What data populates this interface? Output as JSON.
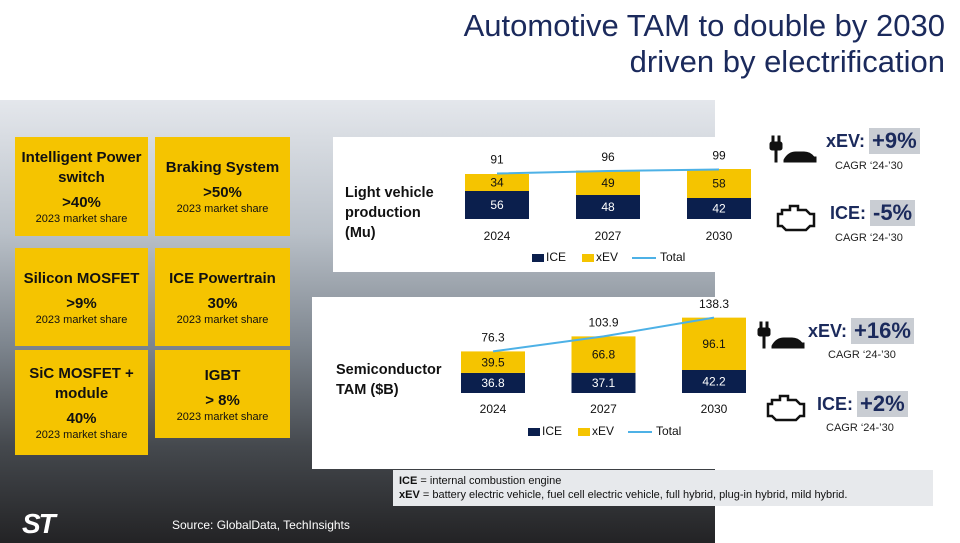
{
  "title_lines": [
    "Automotive TAM to double by 2030",
    "driven by electrification"
  ],
  "segments": [
    {
      "name": "Intelligent Power switch",
      "share": ">40%",
      "note": "2023 market share"
    },
    {
      "name": "Braking System",
      "share": ">50%",
      "note": "2023 market share"
    },
    {
      "name": "Silicon MOSFET",
      "share": ">9%",
      "note": "2023 market share"
    },
    {
      "name": "ICE Powertrain",
      "share": "30%",
      "note": "2023 market share"
    },
    {
      "name": "SiC MOSFET + module",
      "share": "40%",
      "note": "2023 market share"
    },
    {
      "name": "IGBT",
      "share": "> 8%",
      "note": "2023 market share"
    }
  ],
  "chart_data": [
    {
      "type": "bar",
      "stacked": true,
      "title": "Light vehicle production (Mu)",
      "categories": [
        "2024",
        "2027",
        "2030"
      ],
      "series": [
        {
          "name": "ICE",
          "color": "#0b1f4d",
          "values": [
            56,
            48,
            42
          ]
        },
        {
          "name": "xEV",
          "color": "#f5c400",
          "values": [
            34,
            49,
            58
          ]
        },
        {
          "name": "Total",
          "type": "line",
          "color": "#4db1e6",
          "values": [
            91,
            96,
            99
          ]
        }
      ]
    },
    {
      "type": "bar",
      "stacked": true,
      "title": "Semiconductor TAM ($B)",
      "categories": [
        "2024",
        "2027",
        "2030"
      ],
      "series": [
        {
          "name": "ICE",
          "color": "#0b1f4d",
          "values": [
            36.8,
            37.1,
            42.2
          ]
        },
        {
          "name": "xEV",
          "color": "#f5c400",
          "values": [
            39.5,
            66.8,
            96.1
          ]
        },
        {
          "name": "Total",
          "type": "line",
          "color": "#4db1e6",
          "values": [
            76.3,
            103.9,
            138.3
          ]
        }
      ]
    }
  ],
  "cagr": [
    {
      "segment": "xEV:",
      "value": "+9%",
      "period": "CAGR ‘24-’30"
    },
    {
      "segment": "ICE:",
      "value": "-5%",
      "period": "CAGR ‘24-’30"
    },
    {
      "segment": "xEV:",
      "value": "+16%",
      "period": "CAGR ‘24-’30"
    },
    {
      "segment": "ICE:",
      "value": "+2%",
      "period": "CAGR ‘24-’30"
    }
  ],
  "footnotes": [
    {
      "term": "ICE",
      "definition": " = internal combustion engine"
    },
    {
      "term": "xEV",
      "definition": " = battery electric vehicle, fuel cell electric vehicle, full hybrid, plug-in hybrid, mild hybrid."
    }
  ],
  "source": "Source:  GlobalData, TechInsights",
  "logo": "ST"
}
